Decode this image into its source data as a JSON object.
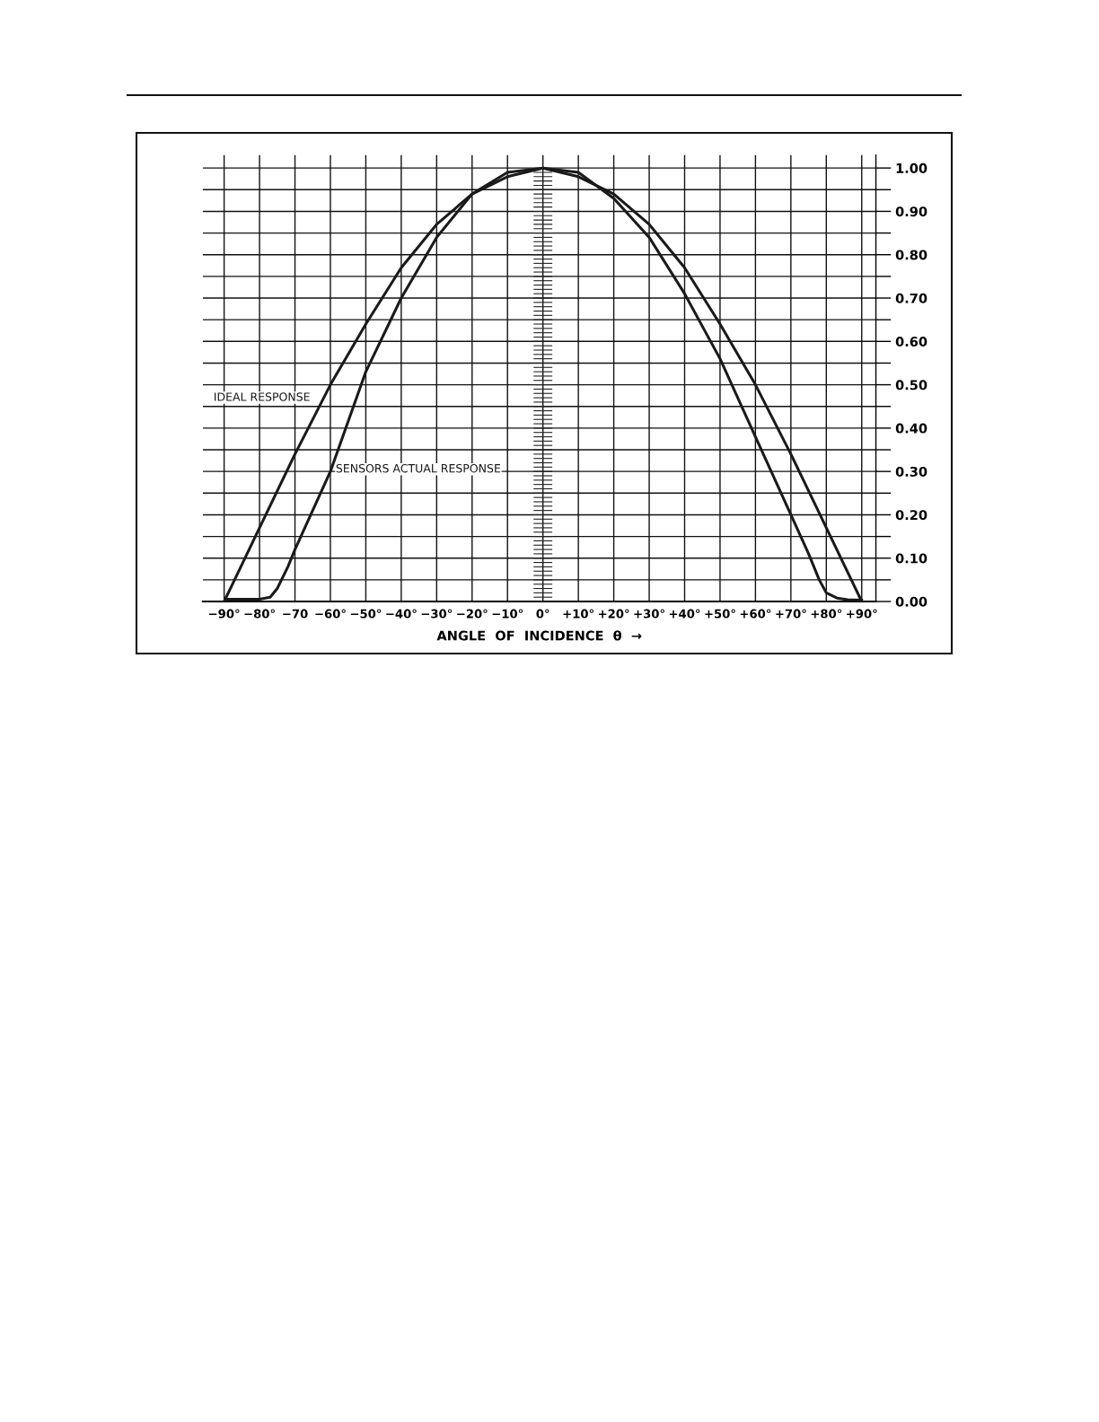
{
  "chart_data": {
    "type": "line",
    "xlabel": "ANGLE  OF  INCIDENCE  θ  →",
    "x": [
      -90,
      -80,
      -70,
      -60,
      -50,
      -40,
      -30,
      -20,
      -10,
      0,
      10,
      20,
      30,
      40,
      50,
      60,
      70,
      80,
      90
    ],
    "series": [
      {
        "name": "IDEAL RESPONSE",
        "color": "#1a1a1a",
        "values": [
          0,
          0.17,
          0.34,
          0.5,
          0.64,
          0.77,
          0.87,
          0.94,
          0.98,
          1.0,
          0.98,
          0.94,
          0.87,
          0.77,
          0.64,
          0.5,
          0.34,
          0.17,
          0
        ]
      },
      {
        "name": "SENSORS ACTUAL RESPONSE",
        "color": "#1a1a1a",
        "x": [
          -89,
          -80,
          -77,
          -75,
          -72,
          -70,
          -60,
          -50,
          -40,
          -30,
          -20,
          -10,
          0,
          10,
          20,
          30,
          40,
          50,
          60,
          70,
          75,
          78,
          80,
          83,
          86,
          90
        ],
        "values": [
          0.005,
          0.005,
          0.01,
          0.03,
          0.08,
          0.12,
          0.3,
          0.53,
          0.7,
          0.84,
          0.94,
          0.99,
          1.0,
          0.99,
          0.93,
          0.84,
          0.71,
          0.56,
          0.38,
          0.2,
          0.11,
          0.05,
          0.02,
          0.008,
          0.004,
          0.003
        ]
      }
    ],
    "xlim": [
      -96,
      94
    ],
    "ylim": [
      0,
      1.03
    ],
    "xticks": [
      {
        "value": -90,
        "label": "−90°"
      },
      {
        "value": -80,
        "label": "−80°"
      },
      {
        "value": -70,
        "label": "−70"
      },
      {
        "value": -60,
        "label": "−60°"
      },
      {
        "value": -50,
        "label": "−50°"
      },
      {
        "value": -40,
        "label": "−40°"
      },
      {
        "value": -30,
        "label": "−30°"
      },
      {
        "value": -20,
        "label": "−20°"
      },
      {
        "value": -10,
        "label": "−10°"
      },
      {
        "value": 0,
        "label": "0°"
      },
      {
        "value": 10,
        "label": "+10°"
      },
      {
        "value": 20,
        "label": "+20°"
      },
      {
        "value": 30,
        "label": "+30°"
      },
      {
        "value": 40,
        "label": "+40°"
      },
      {
        "value": 50,
        "label": "+50°"
      },
      {
        "value": 60,
        "label": "+60°"
      },
      {
        "value": 70,
        "label": "+70°"
      },
      {
        "value": 80,
        "label": "+80°"
      },
      {
        "value": 90,
        "label": "+90°"
      }
    ],
    "yticks": [
      {
        "value": 0,
        "label": "0.00"
      },
      {
        "value": 0.05,
        "label": null
      },
      {
        "value": 0.1,
        "label": "0.10"
      },
      {
        "value": 0.15,
        "label": null
      },
      {
        "value": 0.2,
        "label": "0.20"
      },
      {
        "value": 0.25,
        "label": null
      },
      {
        "value": 0.3,
        "label": "0.30"
      },
      {
        "value": 0.35,
        "label": null
      },
      {
        "value": 0.4,
        "label": "0.40"
      },
      {
        "value": 0.45,
        "label": null
      },
      {
        "value": 0.5,
        "label": "0.50"
      },
      {
        "value": 0.55,
        "label": null
      },
      {
        "value": 0.6,
        "label": "0.60"
      },
      {
        "value": 0.65,
        "label": null
      },
      {
        "value": 0.7,
        "label": "0.70"
      },
      {
        "value": 0.75,
        "label": null
      },
      {
        "value": 0.8,
        "label": "0.80"
      },
      {
        "value": 0.85,
        "label": null
      },
      {
        "value": 0.9,
        "label": "0.90"
      },
      {
        "value": 0.95,
        "label": null
      },
      {
        "value": 1.0,
        "label": "1.00"
      }
    ],
    "grid": true,
    "legend": false,
    "marker": "none",
    "line_style": "solid"
  }
}
